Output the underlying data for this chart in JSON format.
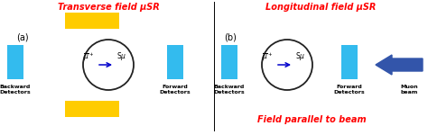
{
  "title_a": "Transverse field μSR",
  "title_b": "Longitudinal field μSR",
  "subtitle": "Field parallel to beam",
  "label_a": "(a)",
  "label_b": "(b)",
  "title_color": "#ff0000",
  "subtitle_color": "#ff0000",
  "detector_color": "#33bbee",
  "magnet_color": "#ffcc00",
  "circle_color": "#222222",
  "arrow_color": "#0000cc",
  "muon_arrow_color": "#3355aa",
  "bg_color": "#ffffff",
  "figw": 4.74,
  "figh": 1.5,
  "dpi": 100
}
